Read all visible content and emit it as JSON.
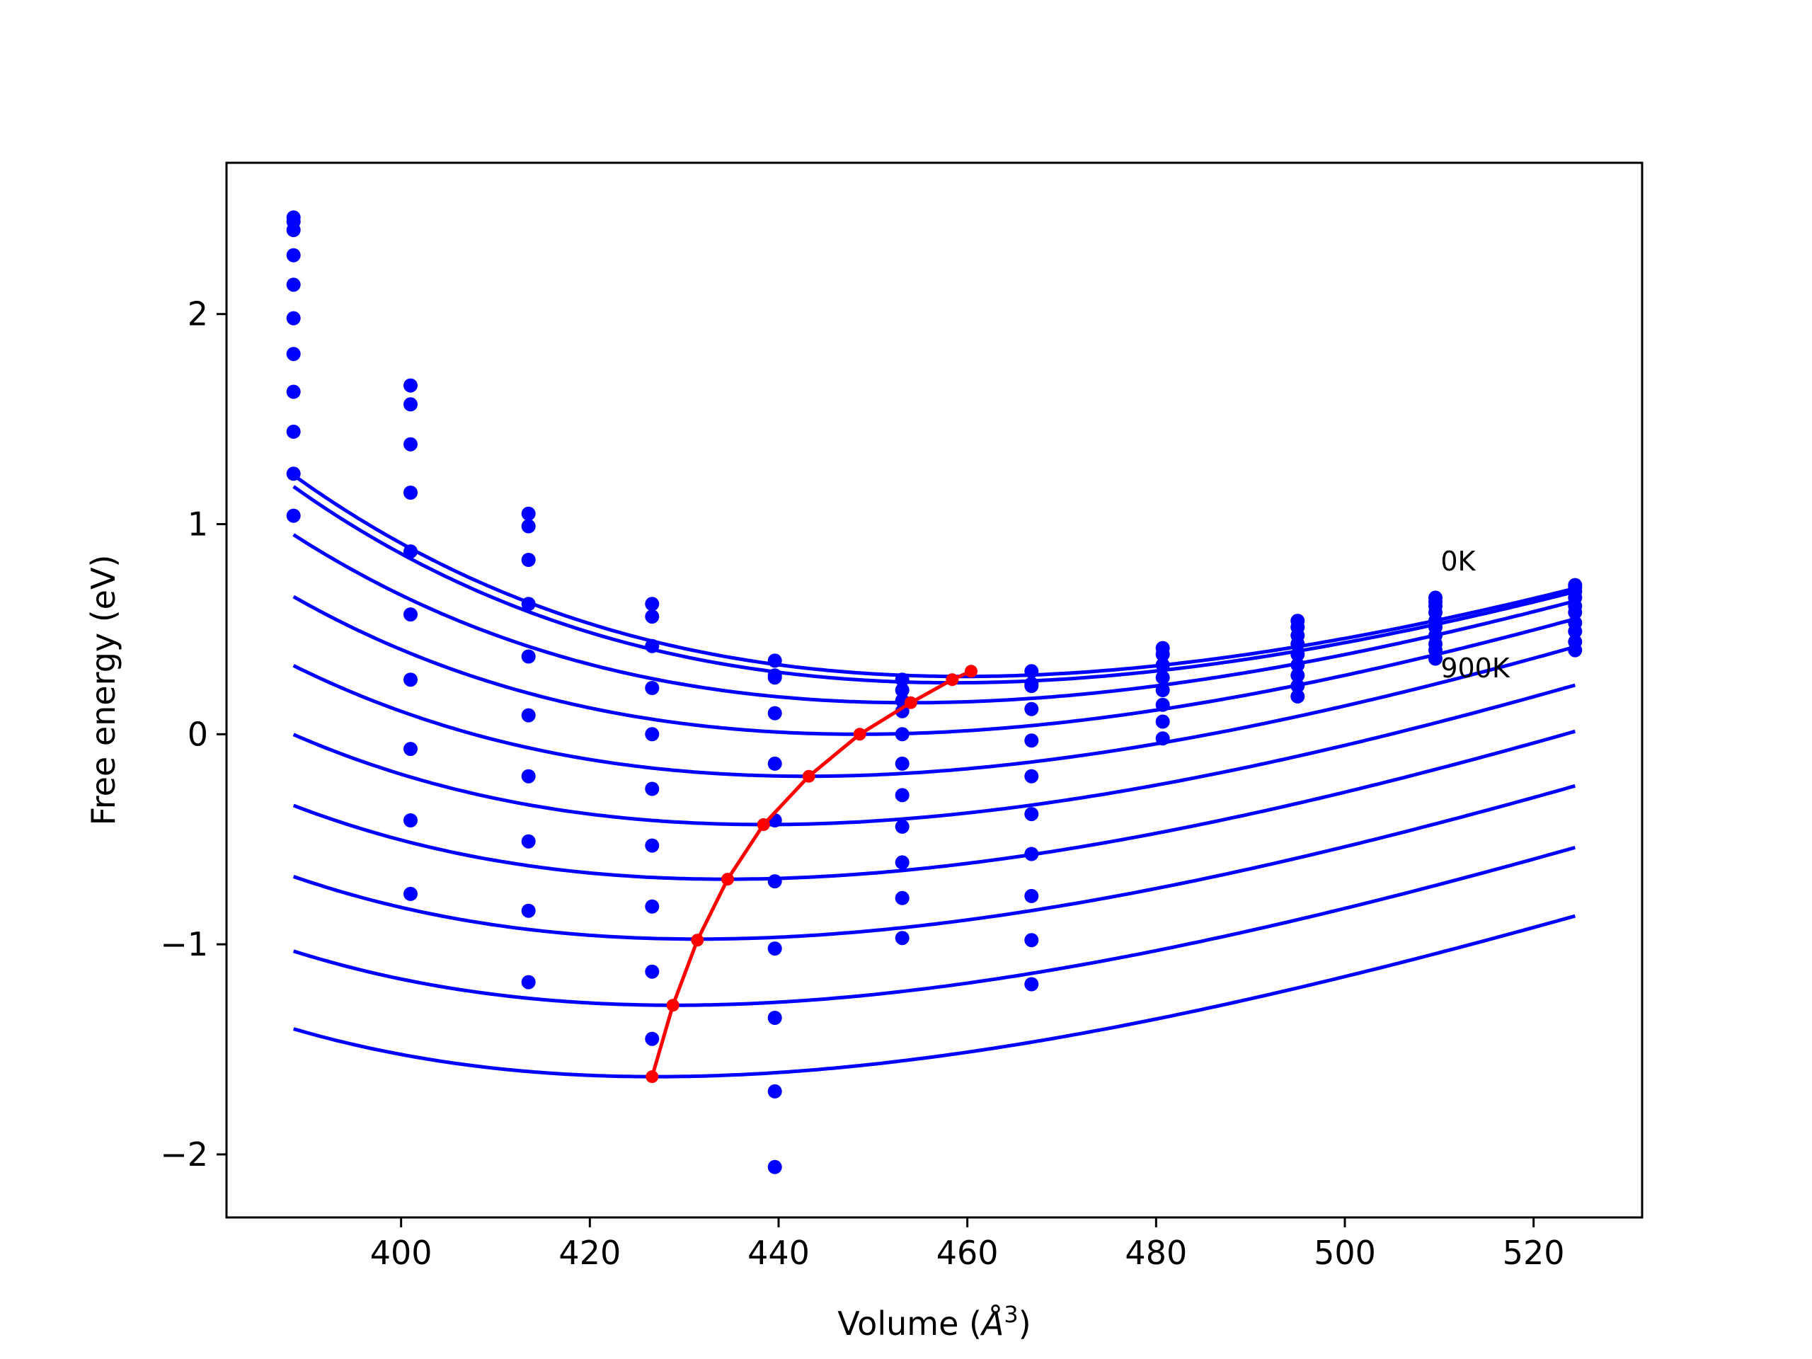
{
  "chart_data": {
    "type": "line",
    "xlabel": "Volume (",
    "xlabel_symbol": "Å",
    "xlabel_exponent": "3",
    "xlabel_close": ")",
    "ylabel": "Free energy (eV)",
    "xlim": [
      381.5,
      531.5
    ],
    "ylim": [
      -2.3,
      2.72
    ],
    "xticks": [
      {
        "value": 400,
        "label": "400"
      },
      {
        "value": 420,
        "label": "420"
      },
      {
        "value": 440,
        "label": "440"
      },
      {
        "value": 460,
        "label": "460"
      },
      {
        "value": 480,
        "label": "480"
      },
      {
        "value": 500,
        "label": "500"
      },
      {
        "value": 520,
        "label": "520"
      }
    ],
    "yticks": [
      {
        "value": -2,
        "label": "−2"
      },
      {
        "value": -1,
        "label": "−1"
      },
      {
        "value": 0,
        "label": "0"
      },
      {
        "value": 1,
        "label": "1"
      },
      {
        "value": 2,
        "label": "2"
      }
    ],
    "annotations": [
      {
        "text": "0K",
        "x": 510,
        "y": 0.78
      },
      {
        "text": "900K",
        "x": 510,
        "y": 0.27
      }
    ],
    "volumes": [
      388.6,
      401.0,
      413.5,
      426.6,
      439.6,
      453.1,
      466.8,
      480.7,
      495.0,
      509.6,
      524.4
    ],
    "series": [
      {
        "temperature_index": 0,
        "points": [
          2.46,
          1.66,
          1.05,
          0.62,
          0.35,
          0.26,
          0.3,
          0.41,
          0.54,
          0.65,
          0.71
        ]
      },
      {
        "temperature_index": 1,
        "points": [
          2.44,
          1.57,
          0.99,
          0.56,
          0.28,
          0.21,
          0.24,
          0.38,
          0.51,
          0.63,
          0.7
        ]
      },
      {
        "temperature_index": 2,
        "points": [
          2.4,
          1.38,
          0.83,
          0.42,
          0.27,
          0.16,
          0.23,
          0.33,
          0.47,
          0.61,
          0.68
        ]
      },
      {
        "temperature_index": 3,
        "points": [
          2.28,
          1.15,
          0.62,
          0.22,
          0.1,
          0.11,
          0.12,
          0.27,
          0.43,
          0.58,
          0.65
        ]
      },
      {
        "temperature_index": 4,
        "points": [
          2.14,
          0.87,
          0.37,
          0.0,
          -0.14,
          0.0,
          -0.03,
          0.21,
          0.38,
          0.54,
          0.61
        ]
      },
      {
        "temperature_index": 5,
        "points": [
          1.98,
          0.57,
          0.09,
          -0.26,
          -0.41,
          -0.14,
          -0.2,
          0.14,
          0.33,
          0.51,
          0.58
        ]
      },
      {
        "temperature_index": 6,
        "points": [
          1.81,
          0.26,
          -0.2,
          -0.53,
          -0.7,
          -0.29,
          -0.38,
          0.06,
          0.28,
          0.47,
          0.53
        ]
      },
      {
        "temperature_index": 7,
        "points": [
          1.63,
          -0.07,
          -0.51,
          -0.82,
          -1.02,
          -0.44,
          -0.57,
          -0.02,
          0.23,
          0.43,
          0.49
        ]
      },
      {
        "temperature_index": 8,
        "points": [
          1.44,
          -0.41,
          -0.84,
          -1.13,
          -1.35,
          -0.61,
          -0.77,
          null,
          0.18,
          0.4,
          0.44
        ]
      },
      {
        "temperature_index": 9,
        "points": [
          1.24,
          -0.76,
          -1.18,
          -1.45,
          -1.7,
          -0.78,
          -0.98,
          null,
          null,
          0.36,
          0.4
        ]
      },
      {
        "temperature_index": 10,
        "points": [
          1.04,
          null,
          null,
          null,
          -2.06,
          -0.97,
          -1.19,
          null,
          null,
          null,
          null
        ]
      }
    ],
    "fit_curves": [
      {
        "E0": 0.275,
        "V0": 459.5,
        "B": 0.000195,
        "Bp": 5.5
      },
      {
        "E0": 0.245,
        "V0": 458.5,
        "B": 0.000196,
        "Bp": 5.5
      },
      {
        "E0": 0.15,
        "V0": 454.0,
        "B": 0.000194,
        "Bp": 5.5
      },
      {
        "E0": 0.0,
        "V0": 448.5,
        "B": 0.000192,
        "Bp": 5.5
      },
      {
        "E0": -0.2,
        "V0": 443.0,
        "B": 0.00019,
        "Bp": 5.5
      },
      {
        "E0": -0.43,
        "V0": 438.5,
        "B": 0.000186,
        "Bp": 5.5
      },
      {
        "E0": -0.69,
        "V0": 434.5,
        "B": 0.000182,
        "Bp": 5.5
      },
      {
        "E0": -0.975,
        "V0": 431.5,
        "B": 0.000178,
        "Bp": 5.5
      },
      {
        "E0": -1.29,
        "V0": 429.0,
        "B": 0.000175,
        "Bp": 5.5
      },
      {
        "E0": -1.63,
        "V0": 427.0,
        "B": 0.000172,
        "Bp": 5.5
      }
    ],
    "fit_range": [
      388.6,
      524.4
    ],
    "minimum_path": {
      "x": [
        426.6,
        428.8,
        431.4,
        434.6,
        438.4,
        443.2,
        448.6,
        454.0,
        458.4,
        460.4
      ],
      "y": [
        -1.63,
        -1.29,
        -0.98,
        -0.69,
        -0.43,
        -0.2,
        0.0,
        0.15,
        0.26,
        0.3
      ]
    },
    "colors": {
      "series": "#0000ff",
      "minimum_path": "#ff0000",
      "axes": "#000000",
      "background": "#ffffff"
    },
    "grid": false
  }
}
